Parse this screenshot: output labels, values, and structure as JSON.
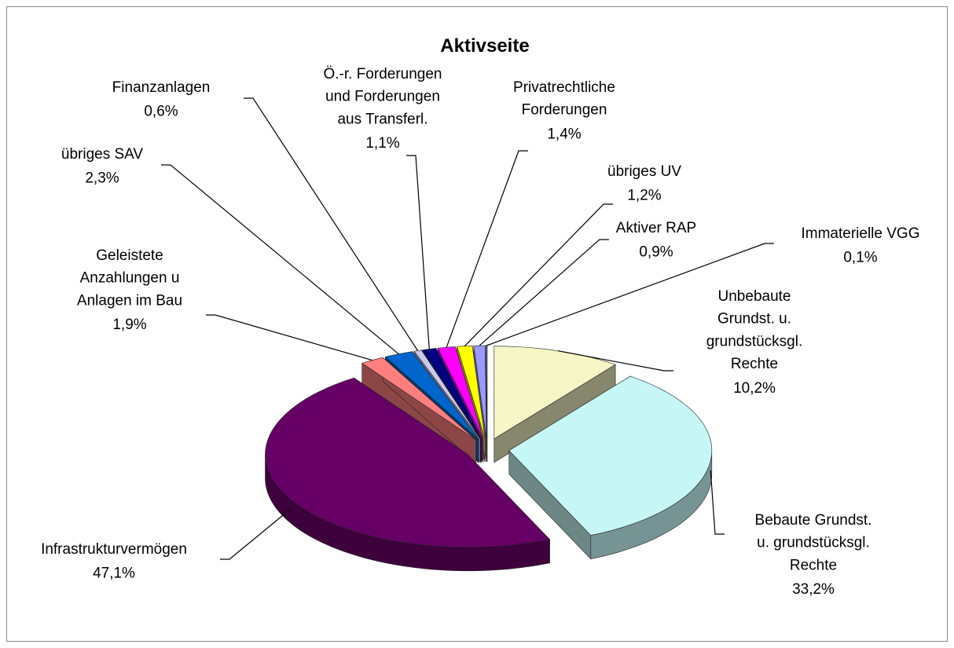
{
  "chart_data": {
    "type": "pie",
    "title": "Aktivseite",
    "categories": [
      "Unbebaute\nGrundst. u.\ngrundstücksgl.\nRechte",
      "Bebaute Grundst.\nu. grundstücksgl.\nRechte",
      "Infrastrukturvermögen",
      "Geleistete\nAnzahlungen u\nAnlagen im Bau",
      "übriges SAV",
      "Finanzanlagen",
      "Ö.-r. Forderungen\nund Forderungen\naus Transferl.",
      "Privatrechtliche\nForderungen",
      "übriges UV",
      "Aktiver RAP",
      "Immaterielle VGG"
    ],
    "values": [
      10.2,
      33.2,
      47.1,
      1.9,
      2.3,
      0.6,
      1.1,
      1.4,
      1.2,
      0.9,
      0.1
    ],
    "value_labels": [
      "10,2%",
      "33,2%",
      "47,1%",
      "1,9%",
      "2,3%",
      "0,6%",
      "1,1%",
      "1,4%",
      "1,2%",
      "0,9%",
      "0,1%"
    ],
    "colors": [
      "#f5f5c6",
      "#c6f6f6",
      "#660066",
      "#ff7f7f",
      "#0066cc",
      "#c8c8f0",
      "#000080",
      "#ff00ff",
      "#ffff00",
      "#9999ff",
      "#7f7fbf"
    ]
  }
}
